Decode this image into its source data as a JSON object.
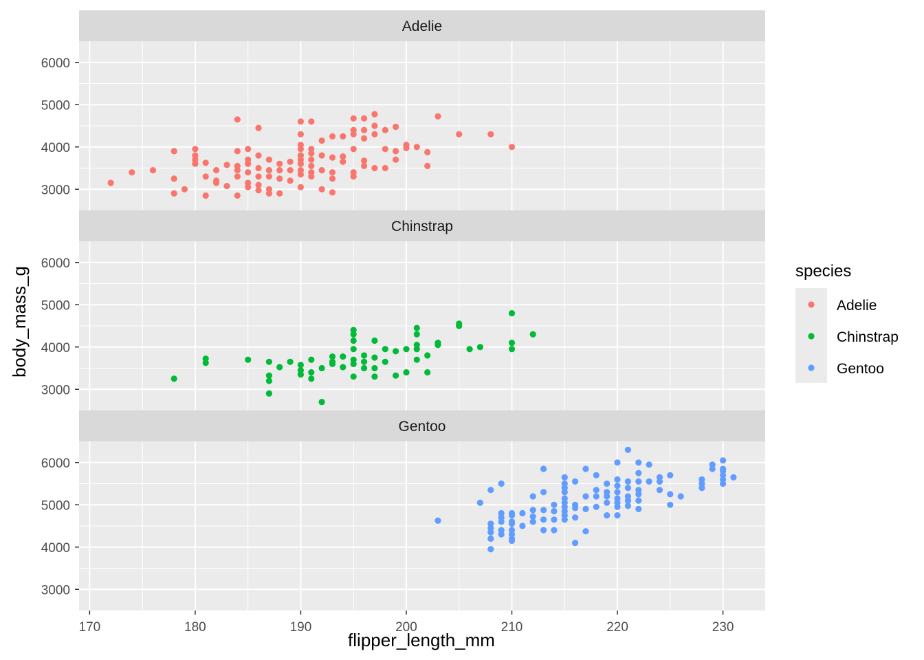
{
  "chart_data": {
    "type": "scatter",
    "xlabel": "flipper_length_mm",
    "ylabel": "body_mass_g",
    "xlim": [
      169,
      234
    ],
    "ylim": [
      2500,
      6500
    ],
    "x_ticks": [
      "170",
      "180",
      "190",
      "200",
      "210",
      "220",
      "230"
    ],
    "y_ticks": [
      "3000",
      "4000",
      "5000",
      "6000"
    ],
    "facet": "species",
    "legend": {
      "title": "species",
      "position": "right"
    },
    "grid": true,
    "series": [
      {
        "name": "Adelie",
        "color": "#F8766D",
        "points": [
          [
            172,
            3150
          ],
          [
            174,
            3400
          ],
          [
            176,
            3450
          ],
          [
            178,
            3900
          ],
          [
            178,
            3250
          ],
          [
            178,
            2900
          ],
          [
            179,
            3000
          ],
          [
            180,
            3950
          ],
          [
            180,
            3800
          ],
          [
            180,
            3700
          ],
          [
            180,
            3600
          ],
          [
            181,
            3625
          ],
          [
            181,
            3300
          ],
          [
            181,
            2850
          ],
          [
            182,
            3450
          ],
          [
            182,
            3200
          ],
          [
            182,
            3150
          ],
          [
            183,
            3575
          ],
          [
            183,
            3075
          ],
          [
            184,
            4650
          ],
          [
            184,
            3900
          ],
          [
            184,
            3550
          ],
          [
            184,
            3450
          ],
          [
            184,
            3300
          ],
          [
            184,
            2850
          ],
          [
            185,
            3950
          ],
          [
            185,
            3700
          ],
          [
            185,
            3600
          ],
          [
            185,
            3400
          ],
          [
            185,
            3150
          ],
          [
            185,
            3050
          ],
          [
            186,
            4450
          ],
          [
            186,
            3800
          ],
          [
            186,
            3500
          ],
          [
            186,
            3300
          ],
          [
            186,
            3100
          ],
          [
            186,
            2975
          ],
          [
            187,
            3700
          ],
          [
            187,
            3450
          ],
          [
            187,
            3300
          ],
          [
            187,
            3000
          ],
          [
            187,
            2900
          ],
          [
            188,
            3600
          ],
          [
            188,
            3450
          ],
          [
            188,
            3250
          ],
          [
            188,
            2900
          ],
          [
            189,
            3650
          ],
          [
            189,
            3450
          ],
          [
            189,
            3200
          ],
          [
            190,
            4600
          ],
          [
            190,
            4300
          ],
          [
            190,
            4050
          ],
          [
            190,
            3950
          ],
          [
            190,
            3800
          ],
          [
            190,
            3700
          ],
          [
            190,
            3600
          ],
          [
            190,
            3450
          ],
          [
            190,
            3350
          ],
          [
            190,
            3050
          ],
          [
            191,
            4600
          ],
          [
            191,
            3950
          ],
          [
            191,
            3850
          ],
          [
            191,
            3700
          ],
          [
            191,
            3550
          ],
          [
            191,
            3400
          ],
          [
            191,
            3300
          ],
          [
            192,
            4150
          ],
          [
            192,
            3800
          ],
          [
            192,
            3450
          ],
          [
            192,
            3000
          ],
          [
            193,
            4250
          ],
          [
            193,
            3750
          ],
          [
            193,
            3400
          ],
          [
            193,
            3250
          ],
          [
            193,
            2925
          ],
          [
            194,
            4250
          ],
          [
            194,
            3775
          ],
          [
            194,
            3650
          ],
          [
            195,
            4675
          ],
          [
            195,
            4400
          ],
          [
            195,
            4300
          ],
          [
            195,
            3950
          ],
          [
            195,
            3400
          ],
          [
            195,
            3300
          ],
          [
            196,
            4675
          ],
          [
            196,
            4400
          ],
          [
            196,
            4200
          ],
          [
            196,
            3675
          ],
          [
            196,
            3550
          ],
          [
            197,
            4775
          ],
          [
            197,
            4500
          ],
          [
            197,
            4300
          ],
          [
            197,
            3500
          ],
          [
            198,
            4400
          ],
          [
            198,
            3950
          ],
          [
            198,
            3500
          ],
          [
            199,
            4475
          ],
          [
            199,
            3900
          ],
          [
            199,
            3700
          ],
          [
            200,
            4050
          ],
          [
            200,
            3975
          ],
          [
            201,
            4000
          ],
          [
            202,
            3875
          ],
          [
            202,
            3550
          ],
          [
            203,
            4725
          ],
          [
            205,
            4300
          ],
          [
            208,
            4300
          ],
          [
            210,
            4000
          ]
        ]
      },
      {
        "name": "Chinstrap",
        "color": "#00BA38",
        "points": [
          [
            178,
            3250
          ],
          [
            181,
            3725
          ],
          [
            181,
            3625
          ],
          [
            185,
            3700
          ],
          [
            187,
            3650
          ],
          [
            187,
            3325
          ],
          [
            187,
            3200
          ],
          [
            187,
            2900
          ],
          [
            188,
            3525
          ],
          [
            189,
            3650
          ],
          [
            190,
            3575
          ],
          [
            190,
            3450
          ],
          [
            190,
            3350
          ],
          [
            191,
            3700
          ],
          [
            191,
            3400
          ],
          [
            191,
            3250
          ],
          [
            192,
            3500
          ],
          [
            192,
            2700
          ],
          [
            193,
            3775
          ],
          [
            193,
            3650
          ],
          [
            193,
            3600
          ],
          [
            194,
            3775
          ],
          [
            194,
            3525
          ],
          [
            195,
            4400
          ],
          [
            195,
            4300
          ],
          [
            195,
            4150
          ],
          [
            195,
            3950
          ],
          [
            195,
            3700
          ],
          [
            195,
            3600
          ],
          [
            195,
            3300
          ],
          [
            196,
            3800
          ],
          [
            196,
            3650
          ],
          [
            196,
            3500
          ],
          [
            197,
            4150
          ],
          [
            197,
            3750
          ],
          [
            197,
            3500
          ],
          [
            197,
            3300
          ],
          [
            198,
            3950
          ],
          [
            198,
            3650
          ],
          [
            199,
            3900
          ],
          [
            199,
            3325
          ],
          [
            200,
            3950
          ],
          [
            200,
            3400
          ],
          [
            201,
            4450
          ],
          [
            201,
            4300
          ],
          [
            201,
            4050
          ],
          [
            201,
            3950
          ],
          [
            201,
            3700
          ],
          [
            202,
            3800
          ],
          [
            202,
            3400
          ],
          [
            203,
            4100
          ],
          [
            203,
            4050
          ],
          [
            205,
            4550
          ],
          [
            205,
            4500
          ],
          [
            206,
            3950
          ],
          [
            207,
            4000
          ],
          [
            210,
            4800
          ],
          [
            210,
            4100
          ],
          [
            210,
            3950
          ],
          [
            212,
            4300
          ]
        ]
      },
      {
        "name": "Gentoo",
        "color": "#619CFF",
        "points": [
          [
            203,
            4625
          ],
          [
            207,
            5050
          ],
          [
            208,
            5350
          ],
          [
            208,
            4550
          ],
          [
            208,
            4450
          ],
          [
            208,
            4350
          ],
          [
            208,
            4200
          ],
          [
            208,
            3950
          ],
          [
            209,
            5500
          ],
          [
            209,
            4800
          ],
          [
            209,
            4700
          ],
          [
            209,
            4600
          ],
          [
            209,
            4400
          ],
          [
            209,
            4300
          ],
          [
            210,
            4800
          ],
          [
            210,
            4750
          ],
          [
            210,
            4600
          ],
          [
            210,
            4550
          ],
          [
            210,
            4400
          ],
          [
            210,
            4300
          ],
          [
            210,
            4200
          ],
          [
            210,
            4150
          ],
          [
            211,
            4800
          ],
          [
            211,
            4500
          ],
          [
            212,
            5200
          ],
          [
            212,
            4875
          ],
          [
            212,
            4725
          ],
          [
            212,
            4600
          ],
          [
            213,
            5850
          ],
          [
            213,
            5300
          ],
          [
            213,
            4875
          ],
          [
            213,
            4650
          ],
          [
            213,
            4400
          ],
          [
            214,
            5000
          ],
          [
            214,
            4850
          ],
          [
            214,
            4650
          ],
          [
            214,
            4400
          ],
          [
            215,
            5650
          ],
          [
            215,
            5500
          ],
          [
            215,
            5400
          ],
          [
            215,
            5300
          ],
          [
            215,
            5150
          ],
          [
            215,
            5050
          ],
          [
            215,
            4950
          ],
          [
            215,
            4850
          ],
          [
            215,
            4750
          ],
          [
            215,
            4650
          ],
          [
            216,
            5550
          ],
          [
            216,
            5000
          ],
          [
            216,
            4925
          ],
          [
            216,
            4700
          ],
          [
            216,
            4100
          ],
          [
            217,
            5850
          ],
          [
            217,
            5200
          ],
          [
            217,
            4900
          ],
          [
            217,
            4375
          ],
          [
            218,
            5700
          ],
          [
            218,
            5350
          ],
          [
            218,
            5200
          ],
          [
            218,
            4950
          ],
          [
            219,
            5500
          ],
          [
            219,
            5300
          ],
          [
            219,
            5200
          ],
          [
            219,
            5050
          ],
          [
            219,
            4750
          ],
          [
            220,
            6000
          ],
          [
            220,
            5600
          ],
          [
            220,
            5450
          ],
          [
            220,
            5300
          ],
          [
            220,
            5150
          ],
          [
            220,
            5050
          ],
          [
            220,
            4950
          ],
          [
            220,
            4750
          ],
          [
            221,
            6300
          ],
          [
            221,
            5550
          ],
          [
            221,
            5400
          ],
          [
            221,
            5200
          ],
          [
            221,
            5100
          ],
          [
            221,
            4975
          ],
          [
            222,
            6000
          ],
          [
            222,
            5750
          ],
          [
            222,
            5550
          ],
          [
            222,
            5350
          ],
          [
            222,
            5250
          ],
          [
            222,
            5100
          ],
          [
            222,
            4900
          ],
          [
            223,
            5950
          ],
          [
            223,
            5550
          ],
          [
            224,
            5650
          ],
          [
            224,
            5550
          ],
          [
            224,
            5350
          ],
          [
            225,
            5700
          ],
          [
            225,
            5250
          ],
          [
            225,
            5000
          ],
          [
            226,
            5200
          ],
          [
            228,
            5600
          ],
          [
            228,
            5500
          ],
          [
            228,
            5400
          ],
          [
            229,
            5950
          ],
          [
            229,
            5850
          ],
          [
            230,
            6050
          ],
          [
            230,
            5850
          ],
          [
            230,
            5800
          ],
          [
            230,
            5700
          ],
          [
            230,
            5600
          ],
          [
            230,
            5500
          ],
          [
            231,
            5650
          ]
        ]
      }
    ]
  }
}
